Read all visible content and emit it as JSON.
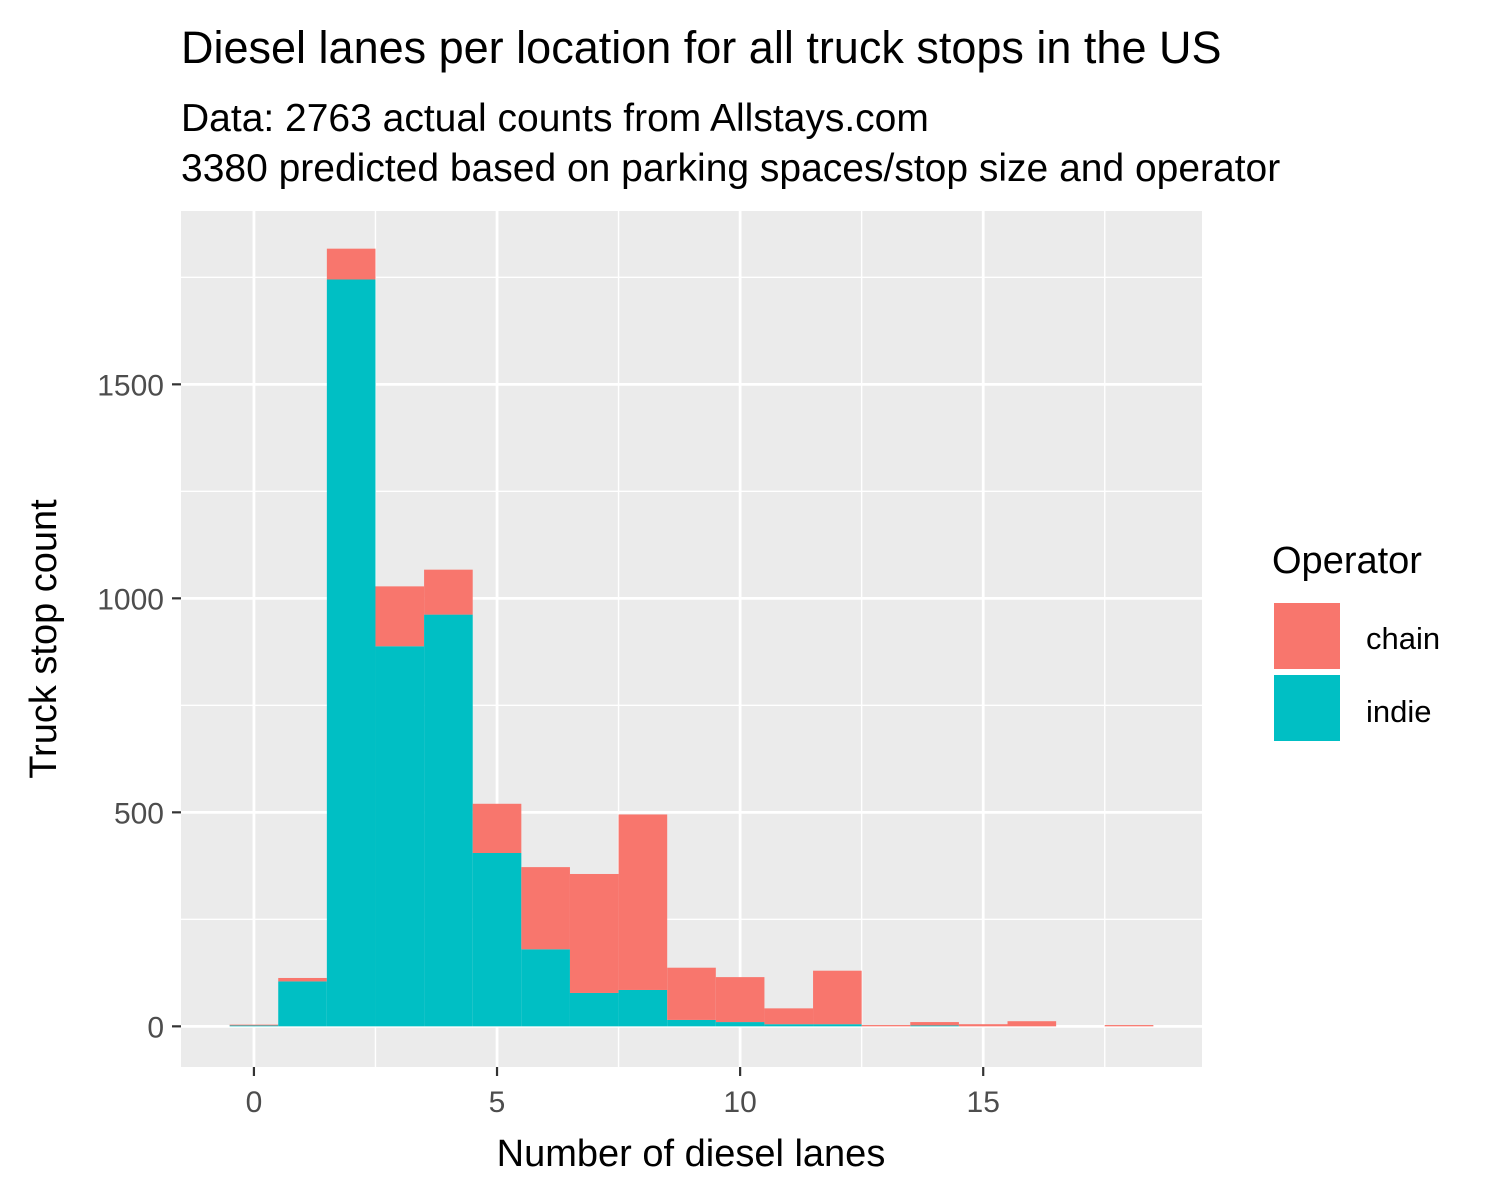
{
  "chart_data": {
    "type": "bar",
    "stacked": true,
    "title": "Diesel lanes per location for all truck stops in the US",
    "subtitle": [
      "Data: 2763 actual counts from Allstays.com",
      "3380 predicted based on parking spaces/stop size and operator"
    ],
    "xlabel": "Number of diesel lanes",
    "ylabel": "Truck stop count",
    "xlim": [
      -1.5,
      19.5
    ],
    "ylim": [
      -95,
      1905
    ],
    "x_ticks": [
      0,
      5,
      10,
      15
    ],
    "y_ticks": [
      0,
      500,
      1000,
      1500
    ],
    "bin_width": 1,
    "x": [
      0,
      1,
      2,
      3,
      4,
      5,
      6,
      7,
      8,
      9,
      10,
      11,
      12,
      13,
      14,
      15,
      16,
      17,
      18
    ],
    "series": [
      {
        "name": "indie",
        "color": "#00BFC4",
        "values": [
          2,
          105,
          1745,
          888,
          962,
          405,
          180,
          78,
          85,
          15,
          10,
          5,
          5,
          0,
          2,
          0,
          0,
          0,
          0
        ]
      },
      {
        "name": "chain",
        "color": "#F8766D",
        "values": [
          2,
          8,
          72,
          140,
          105,
          115,
          192,
          278,
          410,
          122,
          105,
          37,
          125,
          3,
          8,
          5,
          12,
          0,
          3
        ]
      }
    ],
    "stack_order": [
      "indie",
      "chain"
    ],
    "grid": true,
    "legend": {
      "title": "Operator",
      "position": "right",
      "entries": [
        "chain",
        "indie"
      ]
    },
    "colors": {
      "panel": "#EBEBEB",
      "grid": "#FFFFFF",
      "tick_text": "#4D4D4D",
      "tick_mark": "#333333"
    }
  }
}
